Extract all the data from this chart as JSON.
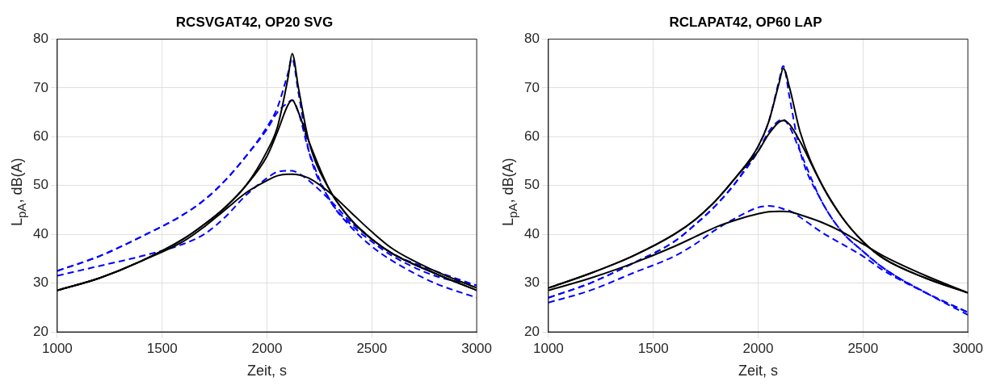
{
  "chart_data": [
    {
      "type": "line",
      "title": "RCSVGAT42, OP20 SVG",
      "xlabel": "Zeit, s",
      "ylabel": "L$_{pA}$, dB(A)",
      "x": [
        1000,
        1200,
        1400,
        1600,
        1700,
        1800,
        1900,
        2000,
        2050,
        2100,
        2120,
        2150,
        2200,
        2300,
        2400,
        2500,
        2600,
        2800,
        3000
      ],
      "xlim": [
        1000,
        3000
      ],
      "xticks": [
        1000,
        1500,
        2000,
        2500,
        3000
      ],
      "ylim": [
        20,
        80
      ],
      "yticks": [
        20,
        30,
        40,
        50,
        60,
        70,
        80
      ],
      "grid": true,
      "series": [
        {
          "color": "#000000",
          "line_style": "solid",
          "values": [
            28.5,
            31,
            34.5,
            39,
            42,
            45.5,
            50,
            57,
            62,
            72,
            77,
            70,
            59,
            49,
            43,
            39,
            36,
            32,
            28.5
          ]
        },
        {
          "color": "#000000",
          "line_style": "solid",
          "values": [
            28.5,
            31,
            34.5,
            39,
            42,
            45.5,
            50,
            56,
            61,
            66.5,
            67.5,
            65,
            59,
            49,
            43,
            39,
            36,
            32,
            28.5
          ]
        },
        {
          "color": "#000000",
          "line_style": "solid",
          "values": [
            28.5,
            31,
            34.5,
            38.5,
            41.5,
            45,
            48.5,
            51,
            52,
            52.3,
            52.3,
            52.2,
            51.5,
            48.5,
            44.5,
            40.5,
            37,
            32.5,
            29
          ]
        },
        {
          "color": "#0000ff",
          "line_style": "dashed",
          "values": [
            32.5,
            35.5,
            39.5,
            44,
            47,
            51,
            56,
            62,
            66,
            73,
            76,
            69,
            57,
            47,
            41.5,
            37.5,
            34.5,
            30,
            27
          ]
        },
        {
          "color": "#0000ff",
          "line_style": "dashed",
          "values": [
            32.5,
            35.5,
            39.5,
            44,
            47,
            51,
            56,
            61.5,
            65,
            67,
            67.5,
            65,
            57,
            47,
            42,
            38.5,
            35.5,
            31.5,
            29.5
          ]
        },
        {
          "color": "#0000ff",
          "line_style": "dashed",
          "values": [
            31.5,
            33.5,
            35.5,
            38,
            40,
            43.5,
            48,
            51.5,
            52.8,
            53,
            53,
            52.5,
            51,
            47,
            42.5,
            39,
            36,
            32.5,
            29.5
          ]
        }
      ]
    },
    {
      "type": "line",
      "title": "RCLAPAT42, OP60 LAP",
      "xlabel": "Zeit, s",
      "ylabel": "L$_{pA}$, dB(A)",
      "x": [
        1000,
        1200,
        1400,
        1600,
        1700,
        1800,
        1900,
        2000,
        2050,
        2100,
        2120,
        2150,
        2200,
        2300,
        2400,
        2500,
        2600,
        2800,
        3000
      ],
      "xlim": [
        1000,
        3000
      ],
      "xticks": [
        1000,
        1500,
        2000,
        2500,
        3000
      ],
      "ylim": [
        20,
        80
      ],
      "yticks": [
        20,
        30,
        40,
        50,
        60,
        70,
        80
      ],
      "grid": true,
      "series": [
        {
          "color": "#000000",
          "line_style": "solid",
          "values": [
            29,
            32,
            35.5,
            40,
            43,
            47,
            52,
            58,
            63,
            71,
            74,
            70,
            61,
            50.5,
            43.5,
            38.5,
            35,
            31,
            28
          ]
        },
        {
          "color": "#000000",
          "line_style": "solid",
          "values": [
            29,
            32,
            35.5,
            40,
            43,
            47,
            52,
            57,
            60.5,
            63,
            63.3,
            62.5,
            59,
            50.5,
            43.5,
            38.5,
            35,
            31,
            28
          ]
        },
        {
          "color": "#000000",
          "line_style": "solid",
          "values": [
            28.5,
            31,
            34,
            37.5,
            39.5,
            41.5,
            43,
            44.2,
            44.6,
            44.7,
            44.7,
            44.6,
            44,
            42.5,
            40.5,
            38,
            35.5,
            31.5,
            28
          ]
        },
        {
          "color": "#0000ff",
          "line_style": "dashed",
          "values": [
            27,
            30,
            34,
            38.5,
            42,
            46,
            51,
            58,
            63,
            71.5,
            74.5,
            68,
            57,
            47,
            40.5,
            36.5,
            33,
            28,
            24
          ]
        },
        {
          "color": "#0000ff",
          "line_style": "dashed",
          "values": [
            27,
            30,
            34,
            38.5,
            42,
            46,
            51,
            57,
            61,
            63.3,
            63.5,
            62,
            57,
            47,
            40.5,
            36.5,
            33,
            28,
            23.5
          ]
        },
        {
          "color": "#0000ff",
          "line_style": "dashed",
          "values": [
            26,
            28.5,
            32,
            35.5,
            38,
            41,
            43.5,
            45.5,
            45.8,
            45.5,
            45.2,
            44.8,
            43.5,
            40.5,
            38,
            35.5,
            32.5,
            28,
            24
          ]
        }
      ]
    }
  ]
}
